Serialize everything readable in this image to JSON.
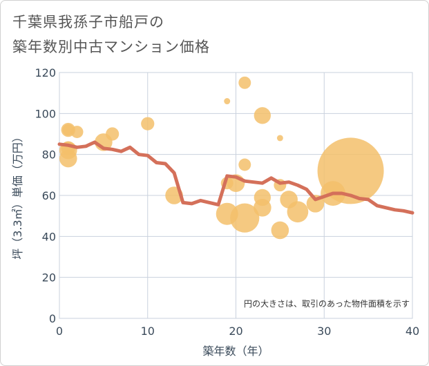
{
  "page": {
    "title_line1": "千葉県我孫子市船戸の",
    "title_line2": "築年数別中古マンション価格"
  },
  "colors": {
    "bubble": "#f3bf6b",
    "line": "#d4705a",
    "grid": "#c9d1dd",
    "text": "#3a4a5a"
  },
  "chart_data": {
    "type": "scatter",
    "title": "千葉県我孫子市船戸の築年数別中古マンション価格",
    "xlabel": "築年数（年）",
    "ylabel": "坪（3.3㎡）単価（万円）",
    "xlim": [
      0,
      40
    ],
    "ylim": [
      0,
      120
    ],
    "x_ticks": [
      "0",
      "10",
      "20",
      "30",
      "40"
    ],
    "y_ticks": [
      "0",
      "20",
      "40",
      "60",
      "80",
      "100",
      "120"
    ],
    "grid": true,
    "note": "円の大きさは、取引のあった物件面積を示す",
    "bubbles": [
      {
        "x": 1,
        "y": 92,
        "size": 1.3
      },
      {
        "x": 1,
        "y": 92,
        "size": 1.6
      },
      {
        "x": 2,
        "y": 91,
        "size": 1.4
      },
      {
        "x": 1,
        "y": 83,
        "size": 1.6
      },
      {
        "x": 1,
        "y": 82,
        "size": 2.0
      },
      {
        "x": 1,
        "y": 78,
        "size": 2.0
      },
      {
        "x": 5,
        "y": 86,
        "size": 2.0
      },
      {
        "x": 6,
        "y": 90,
        "size": 1.5
      },
      {
        "x": 10,
        "y": 95,
        "size": 1.5
      },
      {
        "x": 13,
        "y": 60,
        "size": 2.0
      },
      {
        "x": 19,
        "y": 106,
        "size": 0.7
      },
      {
        "x": 21,
        "y": 115,
        "size": 1.4
      },
      {
        "x": 23,
        "y": 99,
        "size": 1.9
      },
      {
        "x": 25,
        "y": 88,
        "size": 0.7
      },
      {
        "x": 21,
        "y": 75,
        "size": 1.4
      },
      {
        "x": 19,
        "y": 66,
        "size": 1.4
      },
      {
        "x": 20,
        "y": 66,
        "size": 2.0
      },
      {
        "x": 25,
        "y": 65,
        "size": 1.4
      },
      {
        "x": 23,
        "y": 59,
        "size": 1.9
      },
      {
        "x": 26,
        "y": 58,
        "size": 2.0
      },
      {
        "x": 23,
        "y": 54,
        "size": 2.0
      },
      {
        "x": 19,
        "y": 51,
        "size": 2.5
      },
      {
        "x": 21,
        "y": 49,
        "size": 3.3
      },
      {
        "x": 27,
        "y": 52,
        "size": 2.4
      },
      {
        "x": 29,
        "y": 56,
        "size": 2.0
      },
      {
        "x": 25,
        "y": 43,
        "size": 2.0
      },
      {
        "x": 31,
        "y": 61,
        "size": 2.8
      },
      {
        "x": 33,
        "y": 72,
        "size": 7.5
      }
    ],
    "series": [
      {
        "type": "line",
        "x": [
          0,
          1,
          2,
          3,
          4,
          5,
          6,
          7,
          8,
          9,
          10,
          11,
          12,
          13,
          14,
          15,
          16,
          17,
          18,
          19,
          20,
          21,
          22,
          23,
          24,
          25,
          26,
          27,
          28,
          29,
          30,
          31,
          32,
          33,
          34,
          35,
          36,
          37,
          38,
          39,
          40
        ],
        "values": [
          85,
          84.5,
          83.5,
          84,
          86,
          83,
          82.5,
          81.5,
          83.5,
          80,
          79.5,
          76,
          75.5,
          71,
          56.5,
          56,
          57.5,
          56.5,
          55.5,
          69.5,
          69,
          67,
          66.5,
          66,
          68.5,
          66,
          66.5,
          65,
          63,
          58,
          59.5,
          61,
          61,
          60,
          58.5,
          58,
          55,
          54,
          53,
          52.5,
          51.5
        ]
      }
    ]
  }
}
